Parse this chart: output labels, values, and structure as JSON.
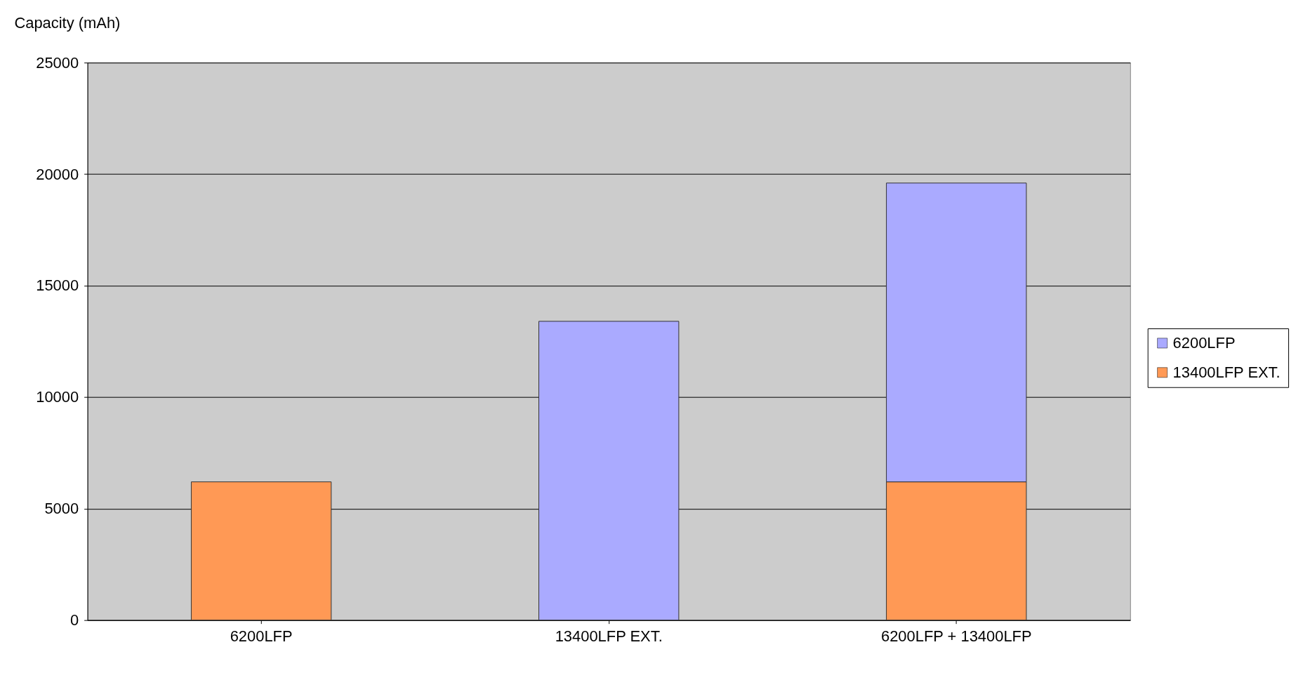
{
  "chart_data": {
    "type": "bar",
    "ylabel": "Capacity (mAh)",
    "stacked": true,
    "categories": [
      "6200LFP",
      "13400LFP EXT.",
      "6200LFP + 13400LFP"
    ],
    "series": [
      {
        "name": "13400LFP EXT.",
        "color": "#ff9955",
        "values": [
          6200,
          null,
          6200
        ]
      },
      {
        "name": "6200LFP",
        "color": "#aaaaff",
        "values": [
          null,
          13400,
          13400
        ]
      }
    ],
    "ylim": [
      0,
      25000
    ],
    "yticks": [
      0,
      5000,
      10000,
      15000,
      20000,
      25000
    ],
    "grid": "y",
    "legend": "right"
  }
}
